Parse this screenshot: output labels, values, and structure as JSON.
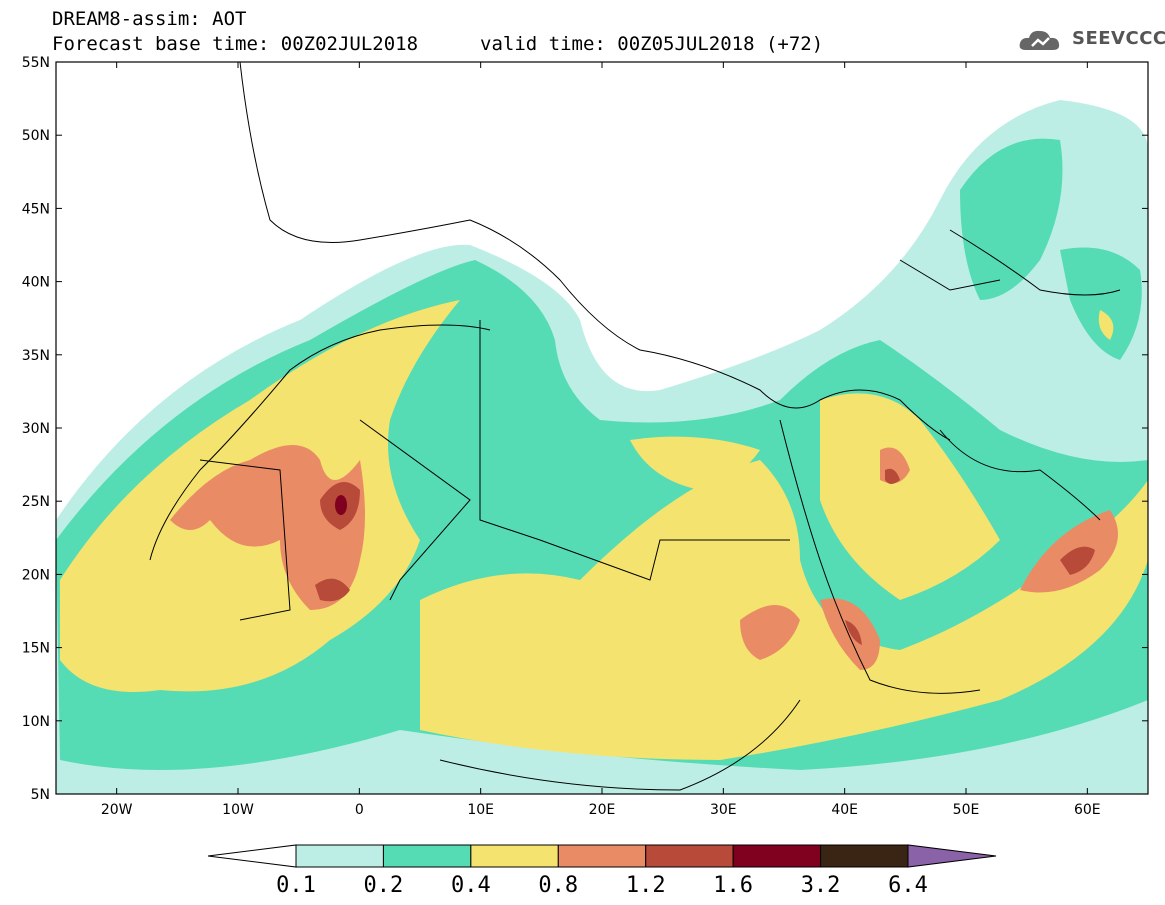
{
  "header": {
    "line1": "DREAM8-assim: AOT",
    "line2": "Forecast base time: 00Z02JUL2018",
    "valid": "valid time: 00Z05JUL2018 (+72)"
  },
  "logo": {
    "text": "SEEVCCC",
    "icon": "cloud-logo-icon"
  },
  "axes": {
    "lat_labels": [
      "55N",
      "50N",
      "45N",
      "40N",
      "35N",
      "30N",
      "25N",
      "20N",
      "15N",
      "10N",
      "5N"
    ],
    "lon_labels": [
      "20W",
      "10W",
      "0",
      "10E",
      "20E",
      "30E",
      "40E",
      "50E",
      "60E"
    ],
    "lat_range": [
      5,
      55
    ],
    "lon_range": [
      -25,
      65
    ]
  },
  "colorbar": {
    "labels": [
      "0.1",
      "0.2",
      "0.4",
      "0.8",
      "1.2",
      "1.6",
      "3.2",
      "6.4"
    ],
    "colors": [
      "#ffffff",
      "#bdeee6",
      "#55dcb5",
      "#f4e36e",
      "#e98c66",
      "#b84a3a",
      "#800020",
      "#3a2414",
      "#8a62a8"
    ]
  }
}
